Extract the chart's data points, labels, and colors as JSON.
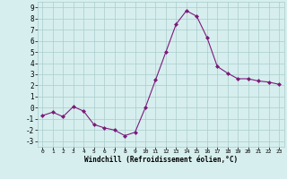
{
  "x": [
    0,
    1,
    2,
    3,
    4,
    5,
    6,
    7,
    8,
    9,
    10,
    11,
    12,
    13,
    14,
    15,
    16,
    17,
    18,
    19,
    20,
    21,
    22,
    23
  ],
  "y": [
    -0.7,
    -0.4,
    -0.8,
    0.1,
    -0.3,
    -1.5,
    -1.8,
    -2.0,
    -2.5,
    -2.2,
    0.0,
    2.5,
    5.0,
    7.5,
    8.7,
    8.2,
    6.3,
    3.7,
    3.1,
    2.6,
    2.6,
    2.4,
    2.3,
    2.1
  ],
  "line_color": "#7B1B7B",
  "marker": "D",
  "marker_size": 2,
  "bg_color": "#d6eeee",
  "grid_color": "#aacccc",
  "xlabel": "Windchill (Refroidissement éolien,°C)",
  "xlim": [
    -0.5,
    23.5
  ],
  "ylim": [
    -3.5,
    9.5
  ],
  "yticks": [
    -3,
    -2,
    -1,
    0,
    1,
    2,
    3,
    4,
    5,
    6,
    7,
    8,
    9
  ],
  "xticks": [
    0,
    1,
    2,
    3,
    4,
    5,
    6,
    7,
    8,
    9,
    10,
    11,
    12,
    13,
    14,
    15,
    16,
    17,
    18,
    19,
    20,
    21,
    22,
    23
  ]
}
